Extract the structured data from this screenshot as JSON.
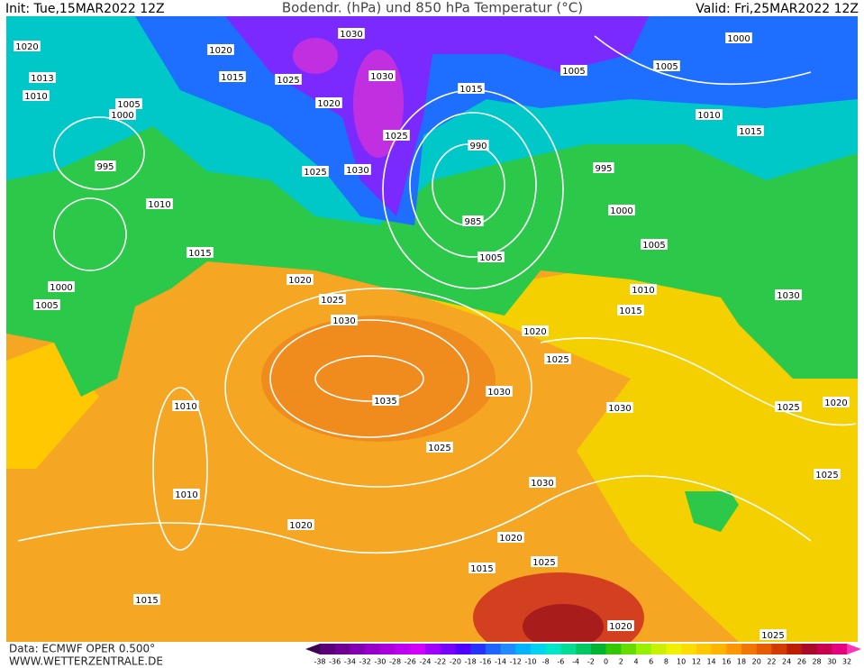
{
  "header": {
    "init": "Init: Tue,15MAR2022 12Z",
    "title": "Bodendr. (hPa) und 850 hPa Temperatur (°C)",
    "valid": "Valid: Fri,25MAR2022 12Z"
  },
  "footer": {
    "data": "Data: ECMWF OPER 0.500°",
    "site": "WWW.WETTERZENTRALE.DE"
  },
  "colorbar": {
    "ticks": [
      -38,
      -36,
      -34,
      -32,
      -30,
      -28,
      -26,
      -24,
      -22,
      -20,
      -18,
      -16,
      -14,
      -12,
      -10,
      -8,
      -6,
      -4,
      -2,
      0,
      2,
      4,
      6,
      8,
      10,
      12,
      14,
      16,
      18,
      20,
      22,
      24,
      26,
      28,
      30,
      32
    ],
    "colors": [
      "#3c0050",
      "#5a0078",
      "#6e0096",
      "#8200b4",
      "#9600c8",
      "#aa00dc",
      "#be00f0",
      "#d200ff",
      "#a000ff",
      "#7800ff",
      "#5000ff",
      "#2832ff",
      "#1e64ff",
      "#1e8cff",
      "#00b4ff",
      "#00d2f0",
      "#00e6c8",
      "#00dc96",
      "#00c864",
      "#00b432",
      "#32c800",
      "#64dc00",
      "#96f000",
      "#c8f000",
      "#f0f000",
      "#ffdc00",
      "#ffc800",
      "#ffb400",
      "#ff9600",
      "#f07800",
      "#e65a00",
      "#d23c00",
      "#be1e00",
      "#aa0a28",
      "#c80050",
      "#e6007d",
      "#ff32b4"
    ]
  },
  "isobars": {
    "labels": [
      "1030",
      "1020",
      "1020",
      "1000",
      "1005",
      "1005",
      "1015",
      "1025",
      "1030",
      "1013",
      "1010",
      "1005",
      "1000",
      "1020",
      "1015",
      "1010",
      "1015",
      "995",
      "1025",
      "1030",
      "1025",
      "990",
      "995",
      "985",
      "1010",
      "1000",
      "1005",
      "1005",
      "1015",
      "1000",
      "1005",
      "1020",
      "1025",
      "1030",
      "1010",
      "1015",
      "1030",
      "1020",
      "1025",
      "1035",
      "1030",
      "1030",
      "1010",
      "1025",
      "1020",
      "1025",
      "1025",
      "1030",
      "1010",
      "1020",
      "1020",
      "1025",
      "1015",
      "1015",
      "1020",
      "1025"
    ]
  }
}
